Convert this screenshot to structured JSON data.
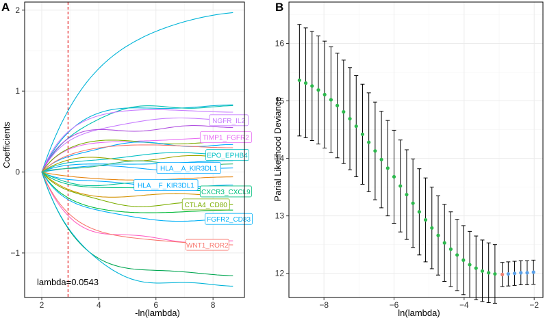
{
  "panels": {
    "a_label": "A",
    "b_label": "B"
  },
  "colors": {
    "grid": "#ebebeb",
    "axis": "#333333",
    "lambda_line": "#e41a1c",
    "cv_point_before": "#2db84d",
    "cv_point_at_min": "#f08070",
    "cv_point_after": "#5aa0e8",
    "errorbar": "#000000"
  },
  "chart_data": [
    {
      "type": "line",
      "title": "",
      "xlabel": "-ln(lambda)",
      "ylabel": "Coefficients",
      "xlim": [
        1.4,
        9.1
      ],
      "ylim": [
        -1.55,
        2.1
      ],
      "xticks": [
        2,
        4,
        6,
        8
      ],
      "yticks": [
        -1,
        0,
        1,
        2
      ],
      "grid": true,
      "lambda_marker": {
        "x": 2.92,
        "label": "lambda=0.0543"
      },
      "x_start": 2.0,
      "x_end": 8.7,
      "series": [
        {
          "name": "",
          "end": 1.97,
          "shape": 1.6,
          "color": "#00b4d8"
        },
        {
          "name": "",
          "end": 0.83,
          "shape": 0.9,
          "color": "#00b4d8"
        },
        {
          "name": "",
          "end": 0.82,
          "shape": 1.0,
          "color": "#00c0b0"
        },
        {
          "name": "",
          "end": 0.74,
          "shape": 0.7,
          "color": "#c77cff"
        },
        {
          "name": "NGFR_IL2",
          "end": 0.64,
          "shape": 0.8,
          "color": "#c77cff"
        },
        {
          "name": "",
          "end": 0.55,
          "shape": 0.6,
          "color": "#b050e0"
        },
        {
          "name": "TIMP1_FGFR2",
          "end": 0.43,
          "shape": 0.7,
          "color": "#e76bf3"
        },
        {
          "name": "",
          "end": 0.38,
          "shape": 0.6,
          "color": "#7cae00"
        },
        {
          "name": "",
          "end": 0.34,
          "shape": 0.8,
          "color": "#00a9ff"
        },
        {
          "name": "",
          "end": 0.3,
          "shape": 0.7,
          "color": "#f8766d"
        },
        {
          "name": "EPO_EPHB4",
          "end": 0.21,
          "shape": 0.8,
          "color": "#00bfc4"
        },
        {
          "name": "",
          "end": 0.18,
          "shape": 0.6,
          "color": "#a3a500"
        },
        {
          "name": "",
          "end": 0.14,
          "shape": 0.7,
          "color": "#00b0f6"
        },
        {
          "name": "HLA__A_KIR3DL1",
          "end": 0.05,
          "shape": 0.7,
          "color": "#00a9ff"
        },
        {
          "name": "",
          "end": 0.1,
          "shape": 0.8,
          "color": "#35b779"
        },
        {
          "name": "",
          "end": -0.06,
          "shape": 0.6,
          "color": "#e68613"
        },
        {
          "name": "HLA__F_KIR3DL1",
          "end": -0.16,
          "shape": 0.7,
          "color": "#00a9ff"
        },
        {
          "name": "",
          "end": -0.18,
          "shape": 0.8,
          "color": "#00c19a"
        },
        {
          "name": "CXCR3_CXCL9",
          "end": -0.24,
          "shape": 0.7,
          "color": "#00bf7d"
        },
        {
          "name": "",
          "end": -0.3,
          "shape": 0.7,
          "color": "#d39200"
        },
        {
          "name": "CTLA4_CD80",
          "end": -0.4,
          "shape": 0.8,
          "color": "#7cae00"
        },
        {
          "name": "",
          "end": -0.47,
          "shape": 0.7,
          "color": "#00ba38"
        },
        {
          "name": "FGFR2_CD83",
          "end": -0.58,
          "shape": 0.8,
          "color": "#00b0f6"
        },
        {
          "name": "",
          "end": -0.85,
          "shape": 0.8,
          "color": "#ff61c3"
        },
        {
          "name": "WNT1_ROR2",
          "end": -0.9,
          "shape": 0.9,
          "color": "#f8766d"
        },
        {
          "name": "",
          "end": -1.28,
          "shape": 1.0,
          "color": "#00a651"
        },
        {
          "name": "",
          "end": -1.41,
          "shape": 1.1,
          "color": "#00b4d8"
        }
      ]
    },
    {
      "type": "errorbar",
      "title": "",
      "xlabel": "ln(lambda)",
      "ylabel": "Parial Likelihood Deviance",
      "xlim": [
        -9.0,
        -1.75
      ],
      "ylim": [
        11.58,
        16.72
      ],
      "xticks": [
        -8,
        -6,
        -4,
        -2
      ],
      "yticks": [
        12,
        13,
        14,
        15,
        16
      ],
      "grid": true,
      "min_ln_lambda": -2.91,
      "points": [
        {
          "x": -8.7,
          "y": 15.36,
          "upper": 16.33,
          "lower": 14.39
        },
        {
          "x": -8.52,
          "y": 15.31,
          "upper": 16.27,
          "lower": 14.36
        },
        {
          "x": -8.34,
          "y": 15.26,
          "upper": 16.21,
          "lower": 14.31
        },
        {
          "x": -8.16,
          "y": 15.19,
          "upper": 16.13,
          "lower": 14.25
        },
        {
          "x": -7.98,
          "y": 15.11,
          "upper": 16.04,
          "lower": 14.18
        },
        {
          "x": -7.8,
          "y": 15.02,
          "upper": 15.94,
          "lower": 14.1
        },
        {
          "x": -7.62,
          "y": 14.92,
          "upper": 15.83,
          "lower": 14.01
        },
        {
          "x": -7.44,
          "y": 14.81,
          "upper": 15.71,
          "lower": 13.91
        },
        {
          "x": -7.26,
          "y": 14.69,
          "upper": 15.58,
          "lower": 13.8
        },
        {
          "x": -7.08,
          "y": 14.56,
          "upper": 15.44,
          "lower": 13.68
        },
        {
          "x": -6.9,
          "y": 14.42,
          "upper": 15.29,
          "lower": 13.55
        },
        {
          "x": -6.72,
          "y": 14.28,
          "upper": 15.14,
          "lower": 13.42
        },
        {
          "x": -6.54,
          "y": 14.13,
          "upper": 14.98,
          "lower": 13.28
        },
        {
          "x": -6.36,
          "y": 13.98,
          "upper": 14.82,
          "lower": 13.14
        },
        {
          "x": -6.18,
          "y": 13.83,
          "upper": 14.66,
          "lower": 13.0
        },
        {
          "x": -6.0,
          "y": 13.68,
          "upper": 14.49,
          "lower": 12.87
        },
        {
          "x": -5.82,
          "y": 13.52,
          "upper": 14.32,
          "lower": 12.72
        },
        {
          "x": -5.64,
          "y": 13.37,
          "upper": 14.15,
          "lower": 12.59
        },
        {
          "x": -5.46,
          "y": 13.22,
          "upper": 13.99,
          "lower": 12.45
        },
        {
          "x": -5.28,
          "y": 13.07,
          "upper": 13.82,
          "lower": 12.32
        },
        {
          "x": -5.1,
          "y": 12.93,
          "upper": 13.66,
          "lower": 12.2
        },
        {
          "x": -4.92,
          "y": 12.79,
          "upper": 13.5,
          "lower": 12.08
        },
        {
          "x": -4.74,
          "y": 12.66,
          "upper": 13.35,
          "lower": 11.97
        },
        {
          "x": -4.56,
          "y": 12.53,
          "upper": 13.2,
          "lower": 11.86
        },
        {
          "x": -4.38,
          "y": 12.42,
          "upper": 13.07,
          "lower": 11.77
        },
        {
          "x": -4.2,
          "y": 12.32,
          "upper": 12.94,
          "lower": 11.7
        },
        {
          "x": -4.02,
          "y": 12.23,
          "upper": 12.83,
          "lower": 11.63
        },
        {
          "x": -3.84,
          "y": 12.15,
          "upper": 12.73,
          "lower": 11.58
        },
        {
          "x": -3.66,
          "y": 12.09,
          "upper": 12.65,
          "lower": 11.54
        },
        {
          "x": -3.48,
          "y": 12.04,
          "upper": 12.58,
          "lower": 11.51
        },
        {
          "x": -3.3,
          "y": 12.01,
          "upper": 12.53,
          "lower": 11.49
        },
        {
          "x": -3.12,
          "y": 11.99,
          "upper": 12.5,
          "lower": 11.48
        },
        {
          "x": -2.91,
          "y": 11.98,
          "upper": 12.19,
          "lower": 11.77
        },
        {
          "x": -2.74,
          "y": 11.99,
          "upper": 12.2,
          "lower": 11.78
        },
        {
          "x": -2.56,
          "y": 12.0,
          "upper": 12.21,
          "lower": 11.79
        },
        {
          "x": -2.38,
          "y": 12.01,
          "upper": 12.22,
          "lower": 11.8
        },
        {
          "x": -2.2,
          "y": 12.01,
          "upper": 12.22,
          "lower": 11.8
        },
        {
          "x": -2.02,
          "y": 12.02,
          "upper": 12.23,
          "lower": 11.81
        }
      ]
    }
  ]
}
